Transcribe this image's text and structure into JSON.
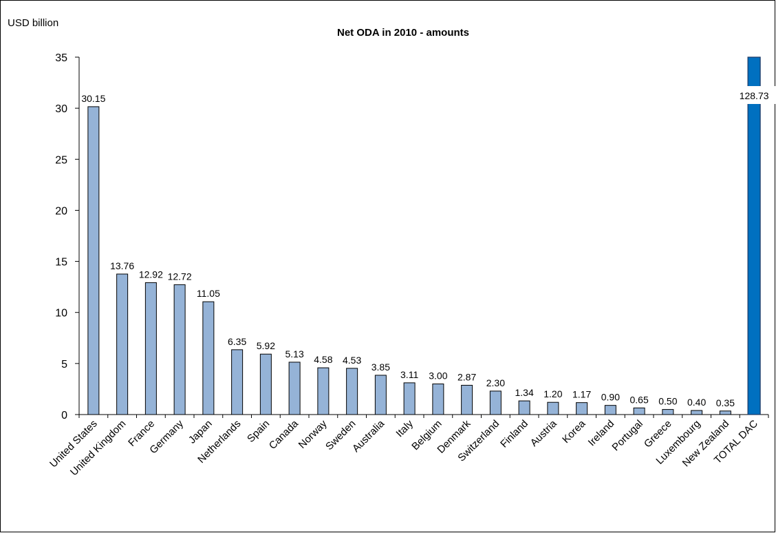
{
  "chart_data": {
    "type": "bar",
    "title": "Net ODA  in 2010 - amounts",
    "ylabel": "USD billion",
    "xlabel": "",
    "ylim": [
      0,
      35
    ],
    "yticks": [
      "0",
      "5",
      "10",
      "15",
      "20",
      "25",
      "30",
      "35"
    ],
    "grid": false,
    "legend": "none",
    "categories": [
      "United States",
      "United Kingdom",
      "France",
      "Germany",
      "Japan",
      "Netherlands",
      "Spain",
      "Canada",
      "Norway",
      "Sweden",
      "Australia",
      "Italy",
      "Belgium",
      "Denmark",
      "Switzerland",
      "Finland",
      "Austria",
      "Korea",
      "Ireland",
      "Portugal",
      "Greece",
      "Luxembourg",
      "New Zealand",
      "TOTAL DAC"
    ],
    "values": [
      30.15,
      13.76,
      12.92,
      12.72,
      11.05,
      6.35,
      5.92,
      5.13,
      4.58,
      4.53,
      3.85,
      3.11,
      3.0,
      2.87,
      2.3,
      1.34,
      1.2,
      1.17,
      0.9,
      0.65,
      0.5,
      0.4,
      0.35,
      128.73
    ],
    "value_labels": [
      "30.15",
      "13.76",
      "12.92",
      "12.72",
      "11.05",
      "6.35",
      "5.92",
      "5.13",
      "4.58",
      "4.53",
      "3.85",
      "3.11",
      "3.00",
      "2.87",
      "2.30",
      "1.34",
      "1.20",
      "1.17",
      "0.90",
      "0.65",
      "0.50",
      "0.40",
      "0.35",
      "128.73"
    ],
    "bar_color": "#95B3D7",
    "highlight_color": "#0070C0",
    "highlight_category": "TOTAL DAC"
  }
}
